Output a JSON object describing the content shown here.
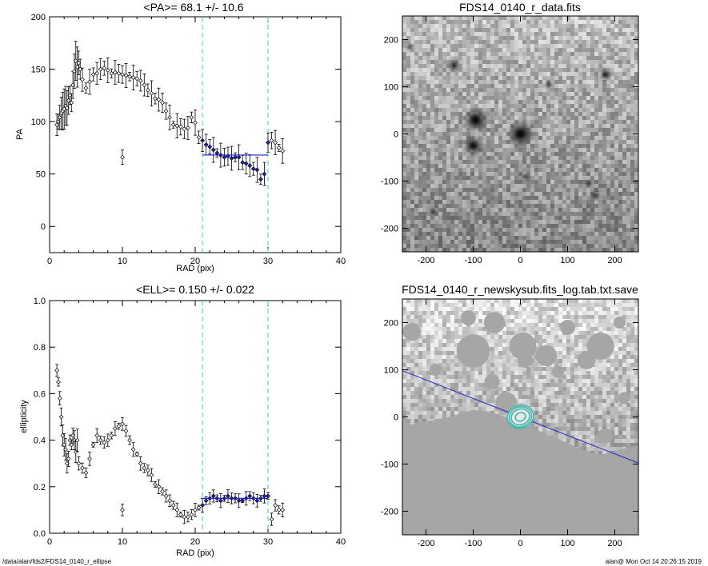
{
  "chart_data": [
    {
      "type": "scatter",
      "title": "<PA>=  68.1 +/-  10.6",
      "xlabel": "RAD (pix)",
      "ylabel": "PA",
      "xlim": [
        0,
        40
      ],
      "ylim": [
        -25,
        200
      ],
      "xticks": [
        "0",
        "10",
        "20",
        "30",
        "40"
      ],
      "yticks": [
        "0",
        "50",
        "100",
        "150",
        "200"
      ],
      "vlines": [
        21,
        30
      ],
      "fit": {
        "x": [
          21,
          30
        ],
        "y": 68.1,
        "color": "#2222cc"
      },
      "series": [
        {
          "values": [
            [
              1.0,
              97
            ],
            [
              1.2,
              100
            ],
            [
              1.4,
              104
            ],
            [
              1.6,
              108
            ],
            [
              1.8,
              110
            ],
            [
              2.0,
              112
            ],
            [
              2.2,
              115
            ],
            [
              2.4,
              113
            ],
            [
              2.6,
              120
            ],
            [
              2.8,
              125
            ],
            [
              3.0,
              118
            ],
            [
              3.2,
              135
            ],
            [
              3.4,
              148
            ],
            [
              3.6,
              158
            ],
            [
              3.8,
              152
            ],
            [
              4.0,
              156
            ],
            [
              4.2,
              150
            ],
            [
              4.5,
              140
            ],
            [
              5.0,
              132
            ],
            [
              5.5,
              138
            ],
            [
              6.0,
              145
            ],
            [
              6.5,
              146
            ],
            [
              7.0,
              150
            ],
            [
              7.5,
              151
            ],
            [
              8.0,
              149
            ],
            [
              8.5,
              146
            ],
            [
              9.0,
              147
            ],
            [
              9.5,
              146
            ],
            [
              10.0,
              145
            ],
            [
              10.5,
              144
            ],
            [
              11.0,
              143
            ],
            [
              11.5,
              142
            ],
            [
              12.0,
              141
            ],
            [
              12.5,
              139
            ],
            [
              13.0,
              135
            ],
            [
              13.5,
              130
            ],
            [
              14.0,
              127
            ],
            [
              14.5,
              122
            ],
            [
              15.0,
              121
            ],
            [
              15.5,
              118
            ],
            [
              16.0,
              110
            ],
            [
              16.5,
              104
            ],
            [
              17.0,
              97
            ],
            [
              17.5,
              96
            ],
            [
              18.0,
              95
            ],
            [
              18.5,
              93
            ],
            [
              19.0,
              94
            ],
            [
              19.5,
              104
            ],
            [
              20.0,
              99
            ],
            [
              20.5,
              85
            ],
            [
              21.0,
              82
            ],
            [
              21.5,
              78
            ],
            [
              22.0,
              76
            ],
            [
              22.5,
              73
            ],
            [
              23.0,
              70
            ],
            [
              23.5,
              68
            ],
            [
              24.0,
              66
            ],
            [
              24.5,
              67
            ],
            [
              25.0,
              65
            ],
            [
              25.5,
              66
            ],
            [
              26.0,
              66
            ],
            [
              26.5,
              61
            ],
            [
              27.0,
              60
            ],
            [
              27.5,
              58
            ],
            [
              28.0,
              55
            ],
            [
              28.5,
              54
            ],
            [
              29.0,
              45
            ],
            [
              29.5,
              50
            ],
            [
              30.0,
              80
            ],
            [
              30.5,
              82
            ],
            [
              31.0,
              80
            ],
            [
              31.5,
              75
            ],
            [
              32.0,
              72
            ],
            [
              10.0,
              66
            ]
          ]
        }
      ]
    },
    {
      "type": "scatter",
      "title": "<ELL>= 0.150 +/-  0.022",
      "xlabel": "RAD (pix)",
      "ylabel": "ellipticity",
      "xlim": [
        0,
        40
      ],
      "ylim": [
        0,
        1
      ],
      "xticks": [
        "0",
        "10",
        "20",
        "30",
        "40"
      ],
      "yticks": [
        "0.0",
        "0.2",
        "0.4",
        "0.6",
        "0.8",
        "1.0"
      ],
      "vlines": [
        21,
        30
      ],
      "fit": {
        "x": [
          21,
          30
        ],
        "y": 0.15,
        "color": "#2222cc"
      },
      "series": [
        {
          "values": [
            [
              1.0,
              0.7
            ],
            [
              1.2,
              0.65
            ],
            [
              1.4,
              0.58
            ],
            [
              1.6,
              0.5
            ],
            [
              1.8,
              0.42
            ],
            [
              2.0,
              0.38
            ],
            [
              2.2,
              0.36
            ],
            [
              2.4,
              0.3
            ],
            [
              2.6,
              0.32
            ],
            [
              2.8,
              0.4
            ],
            [
              3.0,
              0.38
            ],
            [
              3.2,
              0.42
            ],
            [
              3.4,
              0.4
            ],
            [
              3.6,
              0.35
            ],
            [
              3.8,
              0.4
            ],
            [
              4.0,
              0.3
            ],
            [
              4.5,
              0.28
            ],
            [
              5.0,
              0.26
            ],
            [
              5.5,
              0.32
            ],
            [
              6.0,
              0.38
            ],
            [
              6.5,
              0.42
            ],
            [
              7.0,
              0.4
            ],
            [
              7.5,
              0.39
            ],
            [
              8.0,
              0.4
            ],
            [
              8.5,
              0.42
            ],
            [
              9.0,
              0.45
            ],
            [
              9.5,
              0.46
            ],
            [
              10.0,
              0.47
            ],
            [
              10.5,
              0.44
            ],
            [
              11.0,
              0.4
            ],
            [
              11.5,
              0.36
            ],
            [
              12.0,
              0.34
            ],
            [
              12.5,
              0.3
            ],
            [
              13.0,
              0.28
            ],
            [
              13.5,
              0.27
            ],
            [
              14.0,
              0.25
            ],
            [
              14.5,
              0.21
            ],
            [
              15.0,
              0.2
            ],
            [
              15.5,
              0.18
            ],
            [
              16.0,
              0.16
            ],
            [
              16.5,
              0.14
            ],
            [
              17.0,
              0.12
            ],
            [
              17.5,
              0.1
            ],
            [
              18.0,
              0.08
            ],
            [
              18.5,
              0.07
            ],
            [
              19.0,
              0.07
            ],
            [
              19.5,
              0.08
            ],
            [
              20.0,
              0.1
            ],
            [
              20.5,
              0.11
            ],
            [
              21.0,
              0.12
            ],
            [
              21.5,
              0.14
            ],
            [
              22.0,
              0.15
            ],
            [
              22.5,
              0.16
            ],
            [
              23.0,
              0.15
            ],
            [
              23.5,
              0.14
            ],
            [
              24.0,
              0.15
            ],
            [
              24.5,
              0.16
            ],
            [
              25.0,
              0.15
            ],
            [
              25.5,
              0.15
            ],
            [
              26.0,
              0.14
            ],
            [
              26.5,
              0.14
            ],
            [
              27.0,
              0.15
            ],
            [
              27.5,
              0.16
            ],
            [
              28.0,
              0.15
            ],
            [
              28.5,
              0.14
            ],
            [
              29.0,
              0.15
            ],
            [
              29.5,
              0.16
            ],
            [
              30.0,
              0.16
            ],
            [
              30.5,
              0.06
            ],
            [
              31.0,
              0.12
            ],
            [
              31.5,
              0.1
            ],
            [
              32.0,
              0.1
            ],
            [
              10.0,
              0.1
            ]
          ]
        }
      ]
    },
    {
      "type": "heatmap",
      "title": "FDS14_0140_r_data.fits",
      "xlim": [
        -250,
        250
      ],
      "ylim": [
        -250,
        250
      ],
      "xticks": [
        "-200",
        "-100",
        "0",
        "100",
        "200"
      ],
      "yticks": [
        "-200",
        "-100",
        "0",
        "100",
        "200"
      ],
      "sources": [
        {
          "x": 0,
          "y": 0,
          "r": 22
        },
        {
          "x": -95,
          "y": 30,
          "r": 20
        },
        {
          "x": -100,
          "y": -25,
          "r": 16
        },
        {
          "x": -140,
          "y": 145,
          "r": 10
        },
        {
          "x": 180,
          "y": 125,
          "r": 10
        },
        {
          "x": -235,
          "y": 185,
          "r": 6
        },
        {
          "x": 160,
          "y": -130,
          "r": 8
        },
        {
          "x": 145,
          "y": -105,
          "r": 6
        },
        {
          "x": -185,
          "y": -165,
          "r": 5
        },
        {
          "x": 10,
          "y": -90,
          "r": 5
        },
        {
          "x": 60,
          "y": 105,
          "r": 5
        }
      ]
    },
    {
      "type": "heatmap",
      "title": "FDS14_0140_r_newskysub.fits_log.tab.txt.save",
      "xlim": [
        -250,
        250
      ],
      "ylim": [
        -250,
        250
      ],
      "xticks": [
        "-200",
        "-100",
        "0",
        "100",
        "200"
      ],
      "yticks": [
        "-200",
        "-100",
        "0",
        "100",
        "200"
      ],
      "pa_line": {
        "x1": -250,
        "y1": 98,
        "x2": 250,
        "y2": -98,
        "color": "#2222cc"
      },
      "ellipses": [
        {
          "rx": 18,
          "ry": 15,
          "color": "#3fb8b0"
        },
        {
          "rx": 22,
          "ry": 19,
          "color": "#3fb8b0"
        },
        {
          "rx": 26,
          "ry": 22,
          "color": "#3fb8b0"
        },
        {
          "rx": 10,
          "ry": 8,
          "color": "#3fb8b0"
        }
      ]
    }
  ],
  "footer": {
    "left": "/data/alan/fds2/FDS14_0140_r_ellipse",
    "right": "alan@  Mon Oct 14 20:26:15 2019"
  },
  "colors": {
    "guide": "#3fc9c9",
    "fit": "#2222cc",
    "masked": "#a6a6a6"
  }
}
